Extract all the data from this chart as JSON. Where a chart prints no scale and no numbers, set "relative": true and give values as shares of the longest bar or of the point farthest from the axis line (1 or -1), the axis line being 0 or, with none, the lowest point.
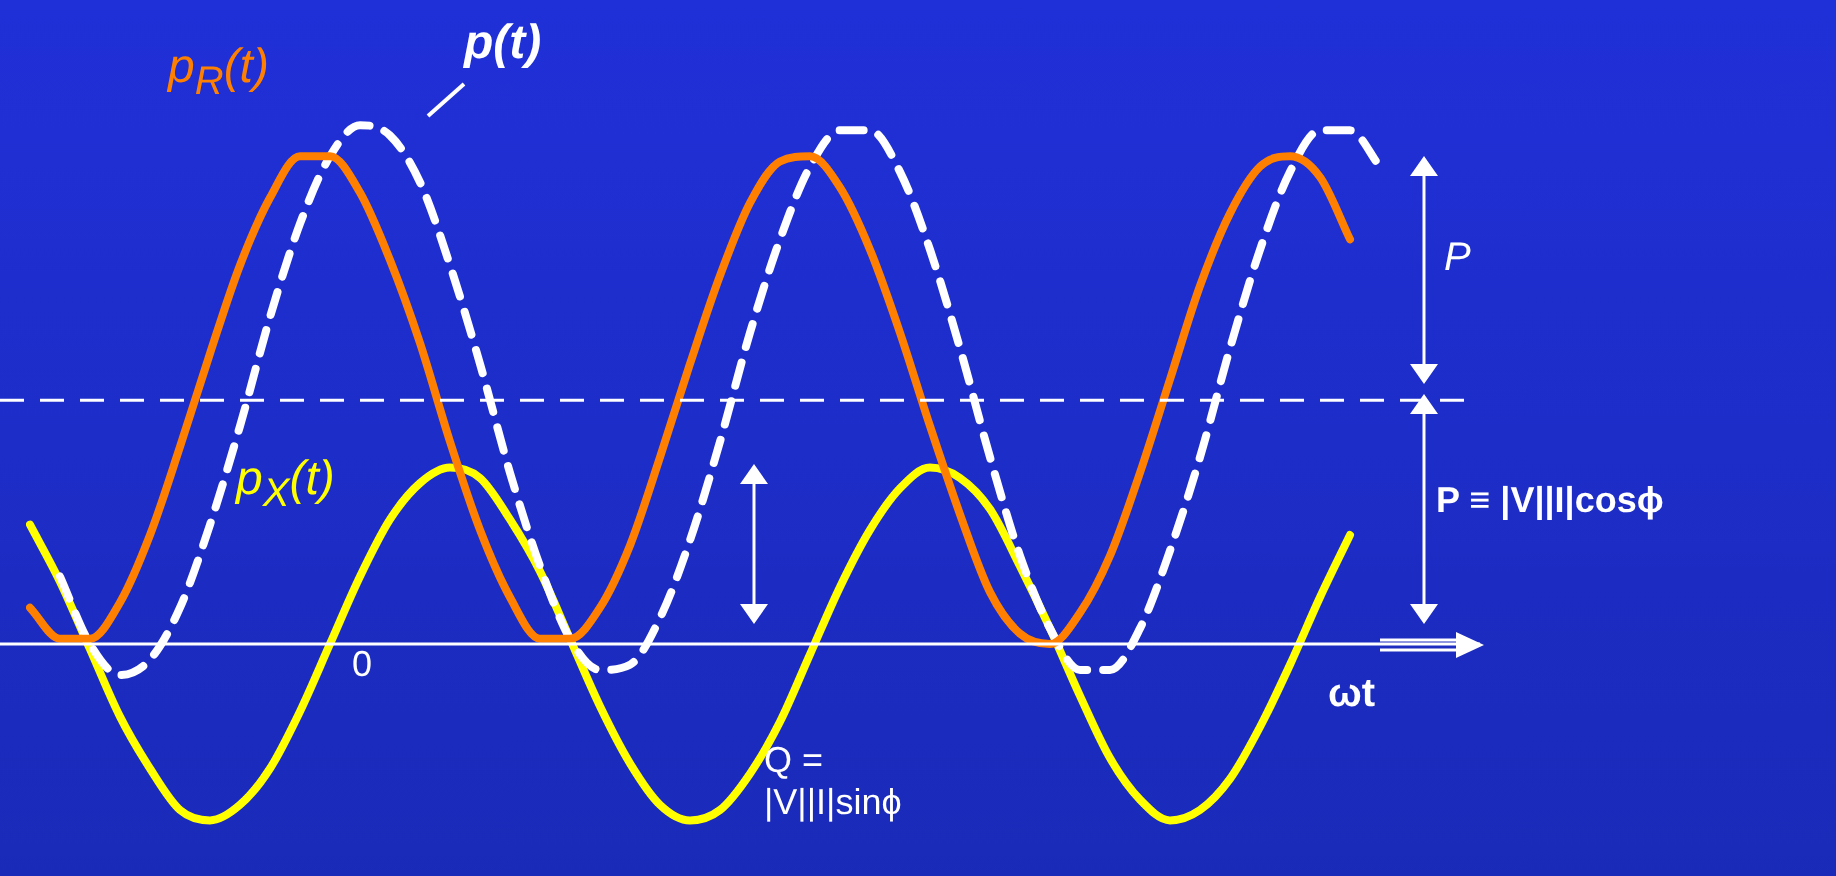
{
  "chart_data": {
    "type": "line",
    "relative": true,
    "marker": "none",
    "legend": false,
    "categories": [
      null,
      null,
      null,
      null,
      null,
      null,
      null,
      null,
      null,
      null,
      null,
      null,
      null,
      null,
      null,
      null,
      null,
      null,
      null,
      null,
      null,
      null,
      null,
      null,
      null,
      null,
      null,
      null,
      null,
      null,
      null,
      null,
      null,
      null,
      null,
      null,
      null,
      null,
      null,
      null,
      null,
      null,
      null,
      null,
      null,
      null
    ],
    "series": [
      {
        "name": "p$_{R}$(t)",
        "color": "#ff8000",
        "values": [
          0.07,
          0.01,
          0.01,
          0.08,
          0.21,
          0.38,
          0.56,
          0.73,
          0.86,
          0.94,
          0.94,
          0.87,
          0.74,
          0.58,
          0.39,
          0.22,
          0.09,
          0.01,
          0.01,
          0.07,
          0.19,
          0.36,
          0.54,
          0.71,
          0.85,
          0.93,
          0.94,
          0.88,
          0.76,
          0.6,
          0.42,
          0.25,
          0.1,
          0.02,
          0.0,
          0.06,
          0.17,
          0.33,
          0.51,
          0.69,
          0.83,
          0.92,
          0.94,
          0.9,
          0.78,
          null
        ]
      },
      {
        "name": "p(t)",
        "color": "#ffffff",
        "line_style": "dashed",
        "values": [
          null,
          0.13,
          0.0,
          -0.06,
          -0.03,
          0.07,
          0.23,
          0.42,
          0.63,
          0.81,
          0.94,
          1.0,
          0.98,
          0.89,
          0.73,
          0.54,
          0.33,
          0.15,
          0.01,
          -0.05,
          -0.04,
          0.05,
          0.2,
          0.39,
          0.6,
          0.78,
          0.92,
          0.99,
          0.99,
          0.91,
          0.76,
          0.57,
          0.36,
          0.17,
          0.03,
          -0.05,
          -0.05,
          0.03,
          0.18,
          0.36,
          0.57,
          0.76,
          0.91,
          0.99,
          0.99,
          0.92
        ]
      },
      {
        "name": "p$_{X}$(t)",
        "color": "#ffff00",
        "values": [
          0.23,
          0.12,
          -0.01,
          -0.14,
          -0.24,
          -0.32,
          -0.34,
          -0.31,
          -0.24,
          -0.13,
          0.0,
          0.13,
          0.24,
          0.31,
          0.34,
          0.32,
          0.24,
          0.14,
          0.01,
          -0.12,
          -0.23,
          -0.31,
          -0.34,
          -0.32,
          -0.25,
          -0.15,
          -0.02,
          0.11,
          0.22,
          0.3,
          0.34,
          0.32,
          0.26,
          0.15,
          0.03,
          -0.1,
          -0.22,
          -0.3,
          -0.34,
          -0.32,
          -0.26,
          -0.16,
          -0.04,
          0.09,
          0.21,
          null
        ]
      }
    ],
    "ref_lines": [
      {
        "axis": "y",
        "value": 0.47,
        "color": "#ffffff",
        "line_style": "dashed"
      }
    ],
    "annotations": [
      "P",
      "P ≡ |V||I|cosϕ",
      "0",
      "ωt",
      "Q =\n|V||I|sinϕ"
    ]
  }
}
